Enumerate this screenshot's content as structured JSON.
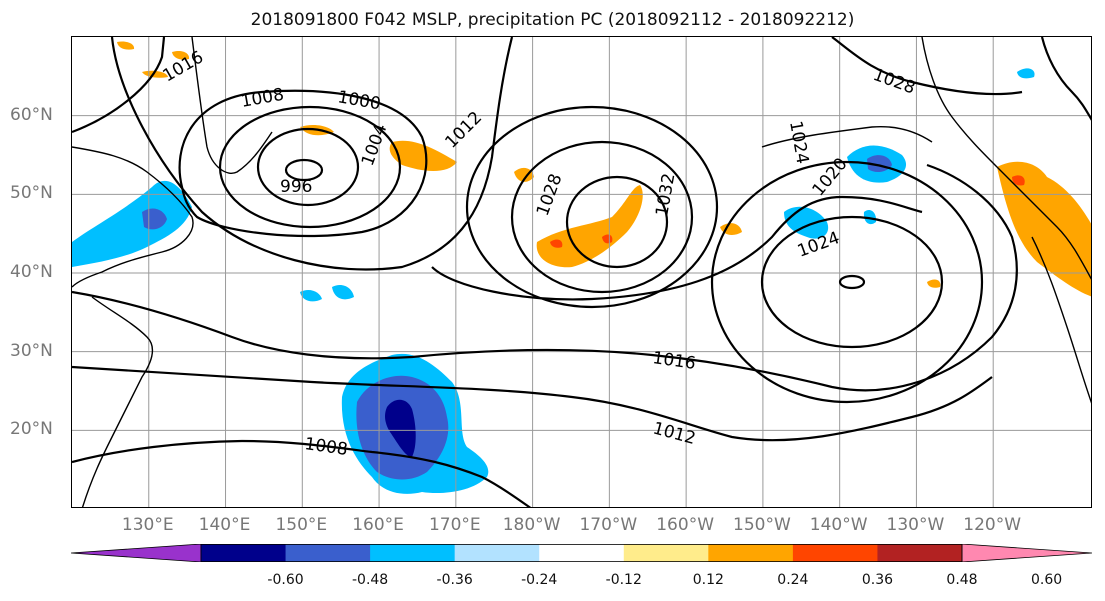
{
  "title": "2018091800 F042 MSLP, precipitation PC (2018092112 - 2018092212)",
  "lat_labels": [
    {
      "text": "60°N",
      "lat": 60
    },
    {
      "text": "50°N",
      "lat": 50
    },
    {
      "text": "40°N",
      "lat": 40
    },
    {
      "text": "30°N",
      "lat": 30
    },
    {
      "text": "20°N",
      "lat": 20
    }
  ],
  "lon_labels": [
    {
      "text": "130°E",
      "lon": 130
    },
    {
      "text": "140°E",
      "lon": 140
    },
    {
      "text": "150°E",
      "lon": 150
    },
    {
      "text": "160°E",
      "lon": 160
    },
    {
      "text": "170°E",
      "lon": 170
    },
    {
      "text": "180°W",
      "lon": 180
    },
    {
      "text": "170°W",
      "lon": 190
    },
    {
      "text": "160°W",
      "lon": 200
    },
    {
      "text": "150°W",
      "lon": 210
    },
    {
      "text": "140°W",
      "lon": 220
    },
    {
      "text": "130°W",
      "lon": 230
    },
    {
      "text": "120°W",
      "lon": 240
    }
  ],
  "isobar_labels": [
    {
      "text": "1016"
    },
    {
      "text": "1008"
    },
    {
      "text": "1000"
    },
    {
      "text": "996"
    },
    {
      "text": "1004"
    },
    {
      "text": "1012"
    },
    {
      "text": "1028"
    },
    {
      "text": "1032"
    },
    {
      "text": "1024"
    },
    {
      "text": "1020"
    },
    {
      "text": "1024"
    },
    {
      "text": "1028"
    },
    {
      "text": "1016"
    },
    {
      "text": "1012"
    },
    {
      "text": "1008"
    }
  ],
  "colorbar": {
    "colors": [
      "#9932cc",
      "#00008b",
      "#3a5fcd",
      "#00bfff",
      "#b2e2ff",
      "#ffffff",
      "#ffec8b",
      "#ffa500",
      "#ff4500",
      "#b22222",
      "#ff88b0"
    ],
    "ticks": [
      "-0.60",
      "-0.48",
      "-0.36",
      "-0.24",
      "-0.12",
      "0.12",
      "0.24",
      "0.36",
      "0.48",
      "0.60"
    ]
  },
  "chart_data": {
    "type": "map",
    "title": "2018091800 F042 MSLP, precipitation PC (2018092112 - 2018092212)",
    "lon_range": [
      120,
      253
    ],
    "lat_range": [
      10,
      70
    ],
    "isobar_values_hpa": [
      996,
      1000,
      1004,
      1008,
      1012,
      1016,
      1020,
      1024,
      1028,
      1032
    ],
    "precipitation_pc_levels": [
      -0.6,
      -0.48,
      -0.36,
      -0.24,
      -0.12,
      0.12,
      0.24,
      0.36,
      0.48,
      0.6
    ],
    "low_center": {
      "lon": 149,
      "lat": 53,
      "pressure": "996"
    },
    "high_centers": [
      {
        "lon": 188,
        "lat": 46,
        "max_contour": "1032"
      },
      {
        "lon": 221,
        "lat": 38,
        "max_contour": "1024"
      }
    ]
  }
}
